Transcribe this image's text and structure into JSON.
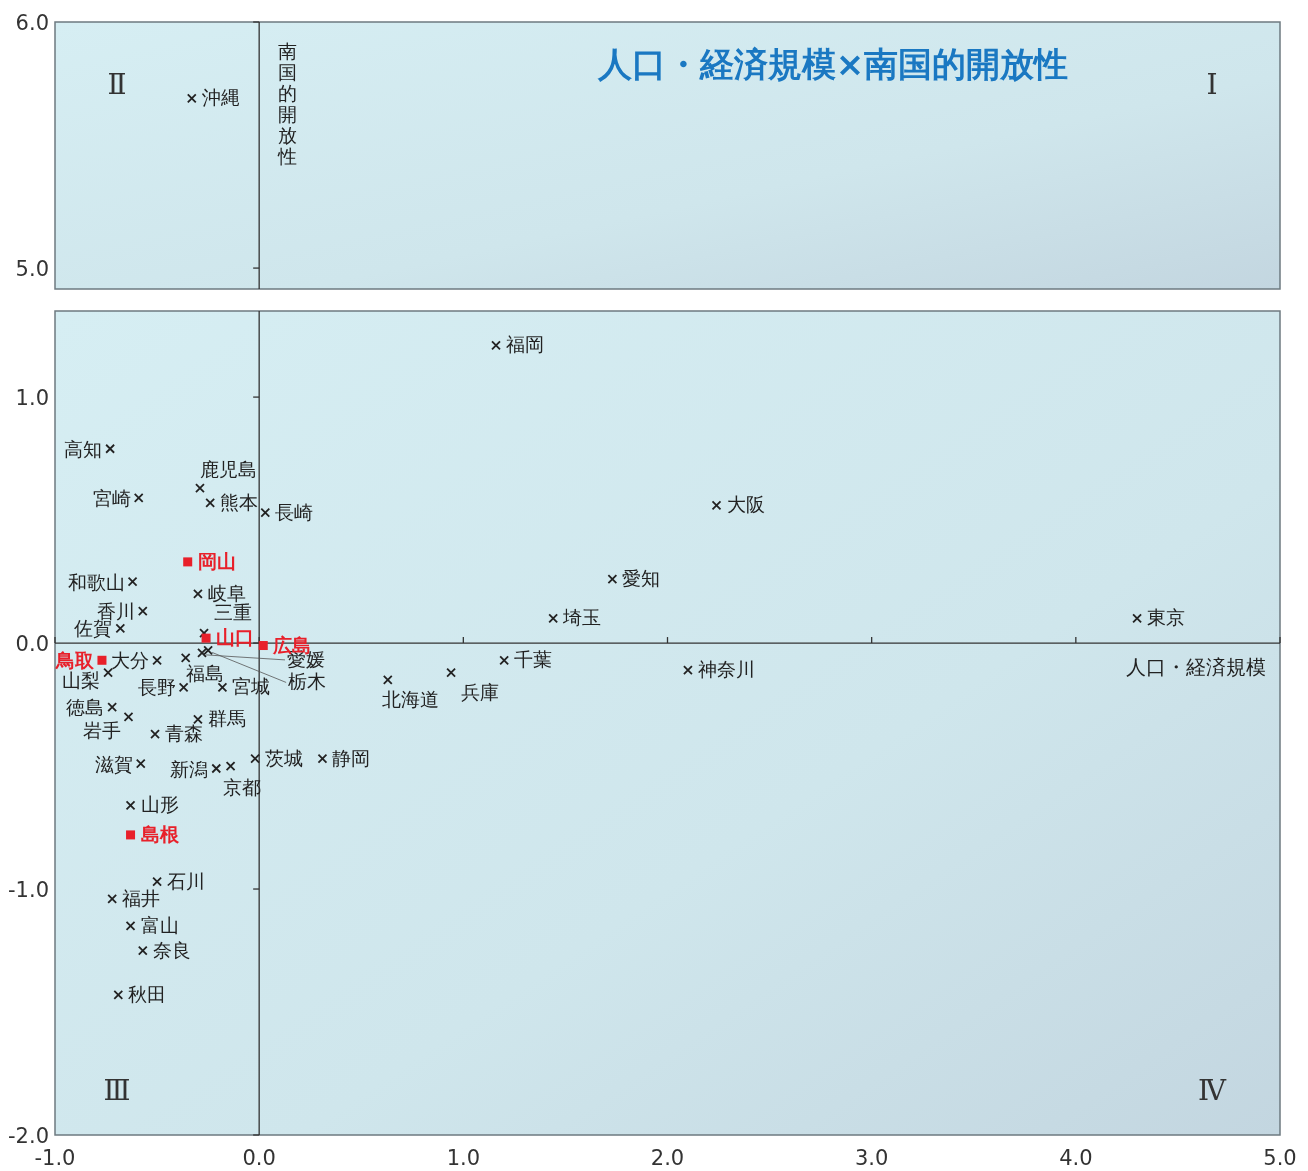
{
  "chart_data": [
    {
      "type": "scatter",
      "title": "人口・経済規模×南国的開放性",
      "ylabel": "南国的開放性",
      "xlim": [
        -1,
        5
      ],
      "ylim": [
        4.915,
        6
      ],
      "yticks": [
        {
          "value": 5,
          "label": "5.0"
        },
        {
          "value": 6,
          "label": "6.0"
        }
      ],
      "tick_labels": "y",
      "series": [
        {
          "color": "#222222",
          "marker": "cross",
          "x": [
            -0.33
          ],
          "values": [
            5.69
          ]
        }
      ],
      "annotations": [
        {
          "text": "沖縄",
          "x": -0.33,
          "y": 5.69
        },
        "Ⅱ",
        "Ⅰ"
      ]
    },
    {
      "type": "scatter",
      "xlabel": "人口・経済規模",
      "xlim": [
        -1,
        5
      ],
      "ylim": [
        -2,
        1.35
      ],
      "xticks": [
        {
          "value": -1,
          "label": "-1.0"
        },
        {
          "value": 0,
          "label": "0.0"
        },
        {
          "value": 1,
          "label": "1.0"
        },
        {
          "value": 2,
          "label": "2.0"
        },
        {
          "value": 3,
          "label": "3.0"
        },
        {
          "value": 4,
          "label": "4.0"
        },
        {
          "value": 5,
          "label": "5.0"
        }
      ],
      "yticks": [
        {
          "value": -2,
          "label": "-2.0"
        },
        {
          "value": -1,
          "label": "-1.0"
        },
        {
          "value": 0,
          "label": "0.0"
        },
        {
          "value": 1,
          "label": "1.0"
        }
      ],
      "series": [
        {
          "color": "#222222",
          "marker": "cross",
          "x": [
            1.16,
            2.24,
            1.73,
            1.44,
            4.3,
            1.2,
            2.1,
            0.63,
            0.94,
            -0.73,
            -0.59,
            -0.29,
            -0.24,
            0.03,
            -0.62,
            -0.3,
            -0.57,
            -0.68,
            -0.27,
            -0.5,
            -0.36,
            -0.28,
            -0.25,
            -0.37,
            -0.18,
            -0.74,
            -0.72,
            -0.64,
            -0.3,
            -0.51,
            -0.02,
            0.31,
            -0.58,
            -0.21,
            -0.14,
            -0.63,
            -0.5,
            -0.72,
            -0.63,
            -0.57,
            -0.69
          ],
          "values": [
            1.21,
            0.56,
            0.26,
            0.1,
            0.1,
            -0.07,
            -0.11,
            -0.15,
            -0.12,
            0.79,
            0.59,
            0.63,
            0.57,
            0.53,
            0.25,
            0.2,
            0.13,
            0.06,
            0.04,
            -0.07,
            -0.06,
            -0.04,
            -0.03,
            -0.18,
            -0.18,
            -0.12,
            -0.26,
            -0.3,
            -0.31,
            -0.37,
            -0.47,
            -0.47,
            -0.49,
            -0.51,
            -0.5,
            -0.66,
            -0.97,
            -1.04,
            -1.15,
            -1.25,
            -1.43
          ]
        },
        {
          "color": "#e8202a",
          "marker": "square",
          "x": [
            -0.35,
            -0.26,
            0.02,
            -0.77,
            -0.63
          ],
          "values": [
            0.33,
            0.02,
            -0.01,
            -0.07,
            -0.78
          ]
        }
      ],
      "annotations": [
        {
          "text": "福岡",
          "x": 1.16,
          "y": 1.21
        },
        {
          "text": "大阪",
          "x": 2.24,
          "y": 0.56
        },
        {
          "text": "愛知",
          "x": 1.73,
          "y": 0.26
        },
        {
          "text": "埼玉",
          "x": 1.44,
          "y": 0.1
        },
        {
          "text": "東京",
          "x": 4.3,
          "y": 0.1
        },
        {
          "text": "千葉",
          "x": 1.2,
          "y": -0.07
        },
        {
          "text": "神奈川",
          "x": 2.1,
          "y": -0.11
        },
        {
          "text": "北海道",
          "x": 0.63,
          "y": -0.15
        },
        {
          "text": "兵庫",
          "x": 0.94,
          "y": -0.12
        },
        {
          "text": "高知",
          "x": -0.73,
          "y": 0.79
        },
        {
          "text": "宮崎",
          "x": -0.59,
          "y": 0.59
        },
        {
          "text": "鹿児島",
          "x": -0.29,
          "y": 0.63
        },
        {
          "text": "熊本",
          "x": -0.24,
          "y": 0.57
        },
        {
          "text": "長崎",
          "x": 0.03,
          "y": 0.53
        },
        {
          "text": "和歌山",
          "x": -0.62,
          "y": 0.25
        },
        {
          "text": "岐阜",
          "x": -0.3,
          "y": 0.2
        },
        {
          "text": "香川",
          "x": -0.57,
          "y": 0.13
        },
        {
          "text": "佐賀",
          "x": -0.68,
          "y": 0.06
        },
        {
          "text": "三重",
          "x": -0.27,
          "y": 0.04
        },
        {
          "text": "大分",
          "x": -0.5,
          "y": -0.07
        },
        {
          "text": "福島",
          "x": -0.36,
          "y": -0.06
        },
        {
          "text": "愛媛",
          "x": -0.28,
          "y": -0.04
        },
        {
          "text": "栃木",
          "x": -0.25,
          "y": -0.03
        },
        {
          "text": "長野",
          "x": -0.37,
          "y": -0.18
        },
        {
          "text": "宮城",
          "x": -0.18,
          "y": -0.18
        },
        {
          "text": "山梨",
          "x": -0.74,
          "y": -0.12
        },
        {
          "text": "徳島",
          "x": -0.72,
          "y": -0.26
        },
        {
          "text": "岩手",
          "x": -0.64,
          "y": -0.3
        },
        {
          "text": "群馬",
          "x": -0.3,
          "y": -0.31
        },
        {
          "text": "青森",
          "x": -0.51,
          "y": -0.37
        },
        {
          "text": "茨城",
          "x": -0.02,
          "y": -0.47
        },
        {
          "text": "静岡",
          "x": 0.31,
          "y": -0.47
        },
        {
          "text": "滋賀",
          "x": -0.58,
          "y": -0.49
        },
        {
          "text": "新潟",
          "x": -0.21,
          "y": -0.51
        },
        {
          "text": "京都",
          "x": -0.14,
          "y": -0.5
        },
        {
          "text": "山形",
          "x": -0.63,
          "y": -0.66
        },
        {
          "text": "石川",
          "x": -0.5,
          "y": -0.97
        },
        {
          "text": "福井",
          "x": -0.72,
          "y": -1.04
        },
        {
          "text": "富山",
          "x": -0.63,
          "y": -1.15
        },
        {
          "text": "奈良",
          "x": -0.57,
          "y": -1.25
        },
        {
          "text": "秋田",
          "x": -0.69,
          "y": -1.43
        },
        {
          "text": "岡山",
          "x": -0.35,
          "y": 0.33
        },
        {
          "text": "山口",
          "x": -0.26,
          "y": 0.02
        },
        {
          "text": "広島",
          "x": 0.02,
          "y": -0.01
        },
        {
          "text": "鳥取",
          "x": -0.77,
          "y": -0.07
        },
        {
          "text": "島根",
          "x": -0.63,
          "y": -0.78
        },
        "Ⅲ",
        "Ⅳ"
      ]
    }
  ]
}
